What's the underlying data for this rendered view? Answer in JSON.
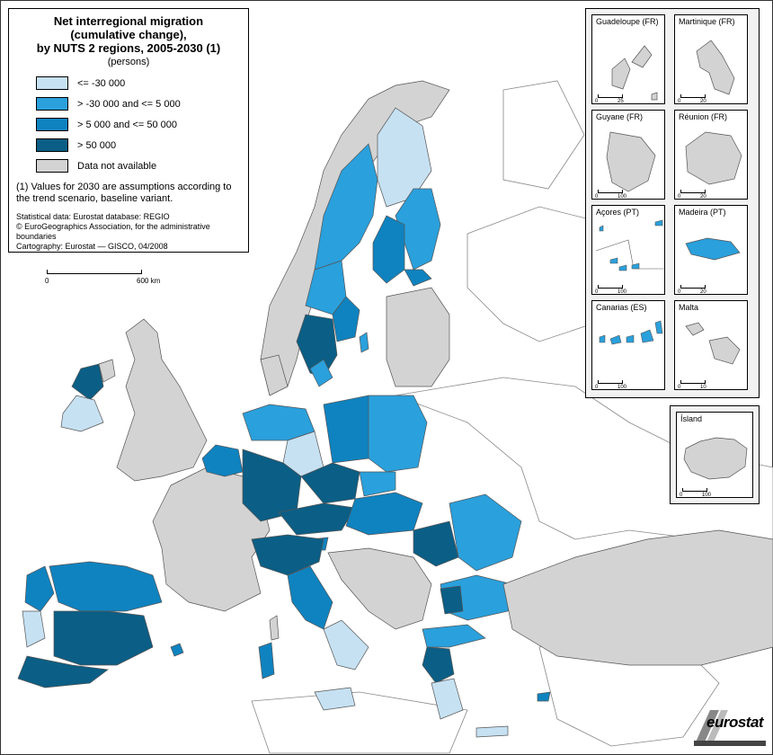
{
  "legend": {
    "title_line1": "Net interregional migration",
    "title_line2": "(cumulative change),",
    "title_line3": "by NUTS 2 regions, 2005-2030 (1)",
    "units": "(persons)",
    "items": [
      {
        "label": "<= -30 000",
        "color": "#c6e1f2"
      },
      {
        "label": "> -30 000 and <= 5 000",
        "color": "#2aa0dc"
      },
      {
        "label": "> 5 000 and <= 50 000",
        "color": "#0f83c0"
      },
      {
        "label": "> 50 000",
        "color": "#0b5e85"
      },
      {
        "label": "Data not available",
        "color": "#d3d3d3"
      }
    ],
    "footnote": "(1) Values for 2030 are assumptions according to the trend scenario, baseline variant.",
    "source1": "Statistical data: Eurostat database: REGIO",
    "source2": "© EuroGeographics Association, for the administrative boundaries",
    "source3": "Cartography: Eurostat — GISCO, 04/2008"
  },
  "scale_bar": {
    "zero": "0",
    "max": "600 km"
  },
  "insets": [
    {
      "name": "Guadeloupe (FR)",
      "scale": "25",
      "fill": "#d3d3d3"
    },
    {
      "name": "Martinique (FR)",
      "scale": "20",
      "fill": "#d3d3d3"
    },
    {
      "name": "Guyane (FR)",
      "scale": "100",
      "fill": "#d3d3d3"
    },
    {
      "name": "Réunion (FR)",
      "scale": "20",
      "fill": "#d3d3d3"
    },
    {
      "name": "Açores (PT)",
      "scale": "100",
      "fill": "#2aa0dc"
    },
    {
      "name": "Madeira (PT)",
      "scale": "20",
      "fill": "#2aa0dc"
    },
    {
      "name": "Canarias (ES)",
      "scale": "100",
      "fill": "#2aa0dc"
    },
    {
      "name": "Malta",
      "scale": "10",
      "fill": "#d3d3d3"
    },
    {
      "name": "Ísland",
      "scale": "100",
      "fill": "#d3d3d3"
    }
  ],
  "logo": {
    "text": "eurostat"
  },
  "colors": {
    "light": "#c6e1f2",
    "medium": "#2aa0dc",
    "mid_dark": "#0f83c0",
    "dark": "#0b5e85",
    "na": "#d3d3d3",
    "sea": "#ffffff"
  }
}
